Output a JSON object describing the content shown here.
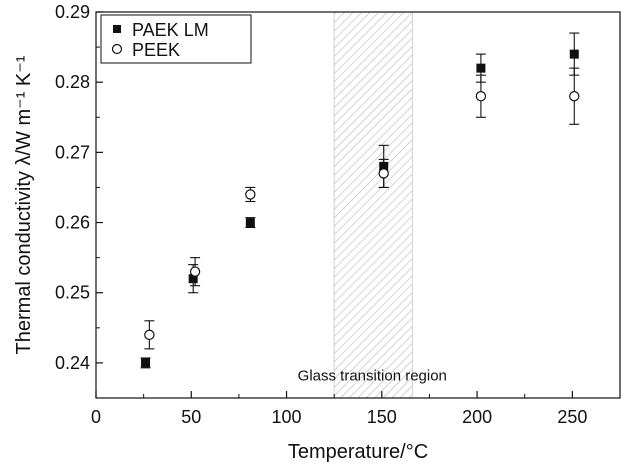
{
  "chart_data": {
    "type": "scatter",
    "xlabel": "Temperature/°C",
    "ylabel": "Thermal conductivity λ/W m⁻¹ K⁻¹",
    "xlim": [
      0,
      275
    ],
    "ylim": [
      0.235,
      0.29
    ],
    "x_ticks": [
      0,
      50,
      100,
      150,
      200,
      250
    ],
    "x_tick_labels": [
      "0",
      "50",
      "100",
      "150",
      "200",
      "250"
    ],
    "y_ticks": [
      0.24,
      0.25,
      0.26,
      0.27,
      0.28,
      0.29
    ],
    "y_tick_labels": [
      "0.24",
      "0.25",
      "0.26",
      "0.27",
      "0.28",
      "0.29"
    ],
    "grid": false,
    "legend_position": "top-left",
    "shaded_region": {
      "x_range": [
        125,
        166
      ],
      "label": "Glass transition region"
    },
    "series": [
      {
        "name": "PAEK LM",
        "marker": "filled-square",
        "color": "#111111",
        "points": [
          {
            "x": 26,
            "y": 0.24,
            "err": 0.0007
          },
          {
            "x": 51,
            "y": 0.252,
            "err": 0.002
          },
          {
            "x": 81,
            "y": 0.26,
            "err": 0.0007
          },
          {
            "x": 151,
            "y": 0.268,
            "err": 0.003
          },
          {
            "x": 202,
            "y": 0.282,
            "err": 0.002
          },
          {
            "x": 251,
            "y": 0.284,
            "err": 0.003
          }
        ]
      },
      {
        "name": "PEEK",
        "marker": "open-circle",
        "color": "#111111",
        "points": [
          {
            "x": 28,
            "y": 0.244,
            "err": 0.002
          },
          {
            "x": 52,
            "y": 0.253,
            "err": 0.002
          },
          {
            "x": 81,
            "y": 0.264,
            "err": 0.001
          },
          {
            "x": 151,
            "y": 0.267,
            "err": 0.002
          },
          {
            "x": 202,
            "y": 0.278,
            "err": 0.003
          },
          {
            "x": 251,
            "y": 0.278,
            "err": 0.004
          }
        ]
      }
    ]
  }
}
